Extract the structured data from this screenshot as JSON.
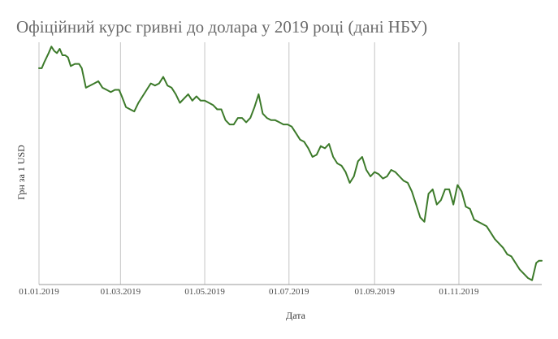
{
  "chart_data": {
    "type": "line",
    "title": "Офіційний курс гривні до долара у 2019 році (дані НБУ)",
    "xlabel": "Дата",
    "ylabel": "Грн за 1 USD",
    "x_ticks": [
      "01.01.2019",
      "01.03.2019",
      "01.05.2019",
      "01.07.2019",
      "01.09.2019",
      "01.11.2019"
    ],
    "x_range": [
      "2019-01-01",
      "2019-12-31"
    ],
    "ylim": [
      23.1,
      28.7
    ],
    "y_ticks_shown": false,
    "grid": "vertical",
    "legend": "none",
    "line_color": "#3c7a2a",
    "series": [
      {
        "x": [
          "2019-01-01",
          "2019-01-03",
          "2019-01-05",
          "2019-01-08",
          "2019-01-10",
          "2019-01-12",
          "2019-01-14",
          "2019-01-16",
          "2019-01-18",
          "2019-01-20",
          "2019-01-22",
          "2019-01-24",
          "2019-01-27",
          "2019-01-30",
          "2019-02-01",
          "2019-02-04",
          "2019-02-07",
          "2019-02-10",
          "2019-02-13",
          "2019-02-16",
          "2019-02-19",
          "2019-02-22",
          "2019-02-25",
          "2019-02-28",
          "2019-03-02",
          "2019-03-05",
          "2019-03-08",
          "2019-03-11",
          "2019-03-14",
          "2019-03-17",
          "2019-03-20",
          "2019-03-23",
          "2019-03-26",
          "2019-03-29",
          "2019-04-01",
          "2019-04-04",
          "2019-04-07",
          "2019-04-10",
          "2019-04-13",
          "2019-04-16",
          "2019-04-19",
          "2019-04-22",
          "2019-04-25",
          "2019-04-28",
          "2019-05-01",
          "2019-05-04",
          "2019-05-07",
          "2019-05-10",
          "2019-05-13",
          "2019-05-16",
          "2019-05-19",
          "2019-05-22",
          "2019-05-25",
          "2019-05-28",
          "2019-05-31",
          "2019-06-03",
          "2019-06-06",
          "2019-06-09",
          "2019-06-12",
          "2019-06-15",
          "2019-06-18",
          "2019-06-21",
          "2019-06-24",
          "2019-06-27",
          "2019-06-30",
          "2019-07-03",
          "2019-07-06",
          "2019-07-09",
          "2019-07-12",
          "2019-07-15",
          "2019-07-18",
          "2019-07-21",
          "2019-07-24",
          "2019-07-27",
          "2019-07-30",
          "2019-08-02",
          "2019-08-05",
          "2019-08-08",
          "2019-08-11",
          "2019-08-14",
          "2019-08-17",
          "2019-08-20",
          "2019-08-23",
          "2019-08-26",
          "2019-08-29",
          "2019-09-01",
          "2019-09-04",
          "2019-09-07",
          "2019-09-10",
          "2019-09-13",
          "2019-09-16",
          "2019-09-19",
          "2019-09-22",
          "2019-09-25",
          "2019-09-28",
          "2019-10-01",
          "2019-10-04",
          "2019-10-07",
          "2019-10-10",
          "2019-10-13",
          "2019-10-16",
          "2019-10-19",
          "2019-10-22",
          "2019-10-25",
          "2019-10-28",
          "2019-10-31",
          "2019-11-03",
          "2019-11-06",
          "2019-11-09",
          "2019-11-12",
          "2019-11-15",
          "2019-11-18",
          "2019-11-21",
          "2019-11-24",
          "2019-11-27",
          "2019-11-30",
          "2019-12-03",
          "2019-12-06",
          "2019-12-09",
          "2019-12-12",
          "2019-12-15",
          "2019-12-18",
          "2019-12-21",
          "2019-12-24",
          "2019-12-27",
          "2019-12-29",
          "2019-12-31"
        ],
        "y": [
          28.1,
          28.1,
          28.25,
          28.45,
          28.6,
          28.5,
          28.45,
          28.55,
          28.4,
          28.4,
          28.35,
          28.15,
          28.2,
          28.2,
          28.1,
          27.65,
          27.7,
          27.75,
          27.8,
          27.65,
          27.6,
          27.55,
          27.6,
          27.6,
          27.45,
          27.2,
          27.15,
          27.1,
          27.3,
          27.45,
          27.6,
          27.75,
          27.7,
          27.75,
          27.9,
          27.7,
          27.65,
          27.5,
          27.3,
          27.4,
          27.5,
          27.35,
          27.45,
          27.35,
          27.35,
          27.3,
          27.25,
          27.15,
          27.15,
          26.9,
          26.8,
          26.8,
          26.95,
          26.95,
          26.85,
          26.95,
          27.2,
          27.5,
          27.05,
          26.95,
          26.9,
          26.9,
          26.85,
          26.8,
          26.8,
          26.75,
          26.6,
          26.45,
          26.4,
          26.25,
          26.05,
          26.1,
          26.3,
          26.25,
          26.35,
          26.05,
          25.9,
          25.85,
          25.7,
          25.45,
          25.6,
          25.95,
          26.05,
          25.75,
          25.6,
          25.7,
          25.65,
          25.55,
          25.6,
          25.75,
          25.7,
          25.6,
          25.5,
          25.45,
          25.25,
          24.95,
          24.65,
          24.55,
          25.2,
          25.3,
          24.95,
          25.05,
          25.3,
          25.3,
          24.95,
          25.4,
          25.25,
          24.9,
          24.85,
          24.6,
          24.55,
          24.5,
          24.45,
          24.3,
          24.15,
          24.05,
          23.95,
          23.8,
          23.75,
          23.6,
          23.45,
          23.35,
          23.25,
          23.2,
          23.6,
          23.65,
          23.65
        ]
      }
    ]
  }
}
